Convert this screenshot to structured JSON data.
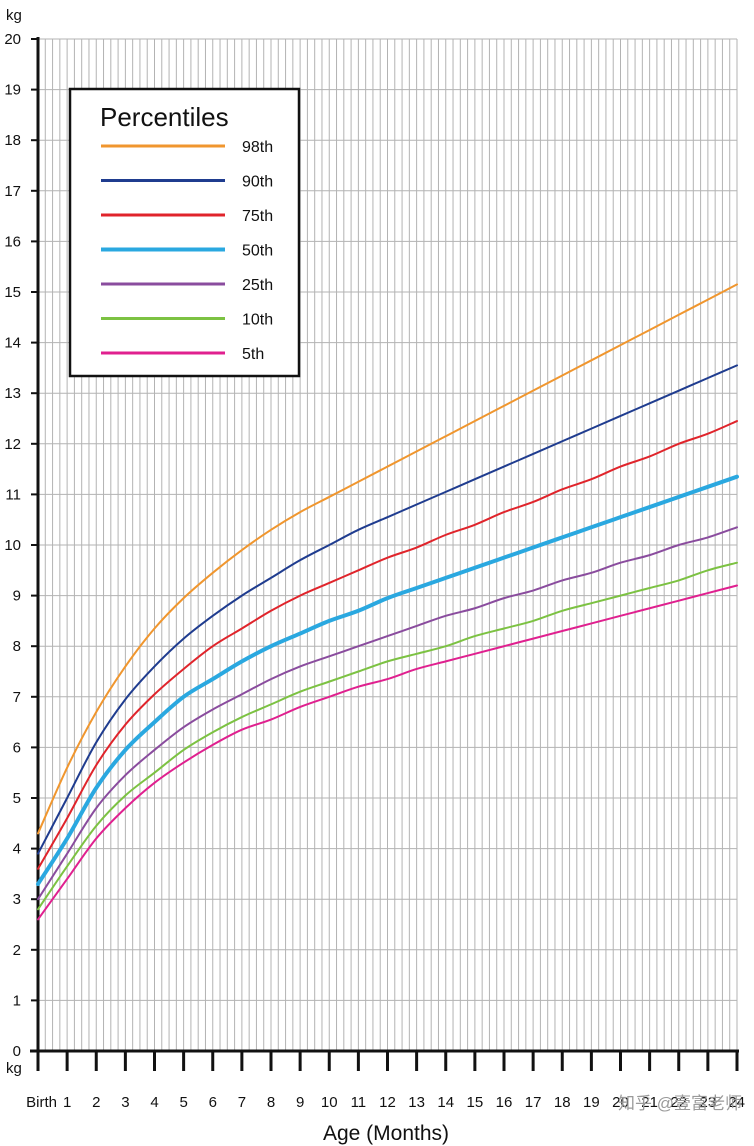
{
  "chart_data": {
    "type": "line",
    "y_unit_label": "kg",
    "xlabel": "Age (Months)",
    "ylim": [
      0,
      20
    ],
    "xlim": [
      0,
      24
    ],
    "y_ticks": [
      "0",
      "1",
      "2",
      "3",
      "4",
      "5",
      "6",
      "7",
      "8",
      "9",
      "10",
      "11",
      "12",
      "13",
      "14",
      "15",
      "16",
      "17",
      "18",
      "19",
      "20"
    ],
    "x_tick_labels": [
      "Birth",
      "1",
      "2",
      "3",
      "4",
      "5",
      "6",
      "7",
      "8",
      "9",
      "10",
      "11",
      "12",
      "13",
      "14",
      "15",
      "16",
      "17",
      "18",
      "19",
      "20",
      "21",
      "22",
      "23",
      "24"
    ],
    "grid": true,
    "legend": {
      "title": "Percentiles",
      "placement": "top-left"
    },
    "x": [
      0,
      1,
      2,
      3,
      4,
      5,
      6,
      7,
      8,
      9,
      10,
      11,
      12,
      13,
      14,
      15,
      16,
      17,
      18,
      19,
      20,
      21,
      22,
      23,
      24
    ],
    "series": [
      {
        "name": "98th",
        "color": "#f0962e",
        "values": [
          4.3,
          5.6,
          6.7,
          7.6,
          8.35,
          8.95,
          9.45,
          9.9,
          10.3,
          10.65,
          10.95,
          11.25,
          11.55,
          11.85,
          12.15,
          12.45,
          12.75,
          13.05,
          13.35,
          13.65,
          13.95,
          14.25,
          14.55,
          14.85,
          15.15
        ]
      },
      {
        "name": "90th",
        "color": "#1f3c8f",
        "values": [
          3.9,
          5.0,
          6.1,
          6.95,
          7.6,
          8.15,
          8.6,
          9.0,
          9.35,
          9.7,
          10.0,
          10.3,
          10.55,
          10.8,
          11.05,
          11.3,
          11.55,
          11.8,
          12.05,
          12.3,
          12.55,
          12.8,
          13.05,
          13.3,
          13.55
        ]
      },
      {
        "name": "75th",
        "color": "#e0242b",
        "values": [
          3.6,
          4.6,
          5.65,
          6.45,
          7.05,
          7.55,
          8.0,
          8.35,
          8.7,
          9.0,
          9.25,
          9.5,
          9.75,
          9.95,
          10.2,
          10.4,
          10.65,
          10.85,
          11.1,
          11.3,
          11.55,
          11.75,
          12.0,
          12.2,
          12.45
        ]
      },
      {
        "name": "50th",
        "color": "#2aa8e0",
        "values": [
          3.3,
          4.2,
          5.2,
          5.95,
          6.5,
          7.0,
          7.35,
          7.7,
          8.0,
          8.25,
          8.5,
          8.7,
          8.95,
          9.15,
          9.35,
          9.55,
          9.75,
          9.95,
          10.15,
          10.35,
          10.55,
          10.75,
          10.95,
          11.15,
          11.35
        ]
      },
      {
        "name": "25th",
        "color": "#8a4c9e",
        "values": [
          3.0,
          3.9,
          4.8,
          5.45,
          5.95,
          6.4,
          6.75,
          7.05,
          7.35,
          7.6,
          7.8,
          8.0,
          8.2,
          8.4,
          8.6,
          8.75,
          8.95,
          9.1,
          9.3,
          9.45,
          9.65,
          9.8,
          10.0,
          10.15,
          10.35
        ]
      },
      {
        "name": "10th",
        "color": "#7cc242",
        "values": [
          2.8,
          3.65,
          4.45,
          5.05,
          5.5,
          5.95,
          6.3,
          6.6,
          6.85,
          7.1,
          7.3,
          7.5,
          7.7,
          7.85,
          8.0,
          8.2,
          8.35,
          8.5,
          8.7,
          8.85,
          9.0,
          9.15,
          9.3,
          9.5,
          9.65
        ]
      },
      {
        "name": "5th",
        "color": "#e0208f",
        "values": [
          2.6,
          3.4,
          4.2,
          4.8,
          5.3,
          5.7,
          6.05,
          6.35,
          6.55,
          6.8,
          7.0,
          7.2,
          7.35,
          7.55,
          7.7,
          7.85,
          8.0,
          8.15,
          8.3,
          8.45,
          8.6,
          8.75,
          8.9,
          9.05,
          9.2
        ]
      }
    ]
  },
  "watermark": {
    "text": "知乎 @壹富老师"
  }
}
